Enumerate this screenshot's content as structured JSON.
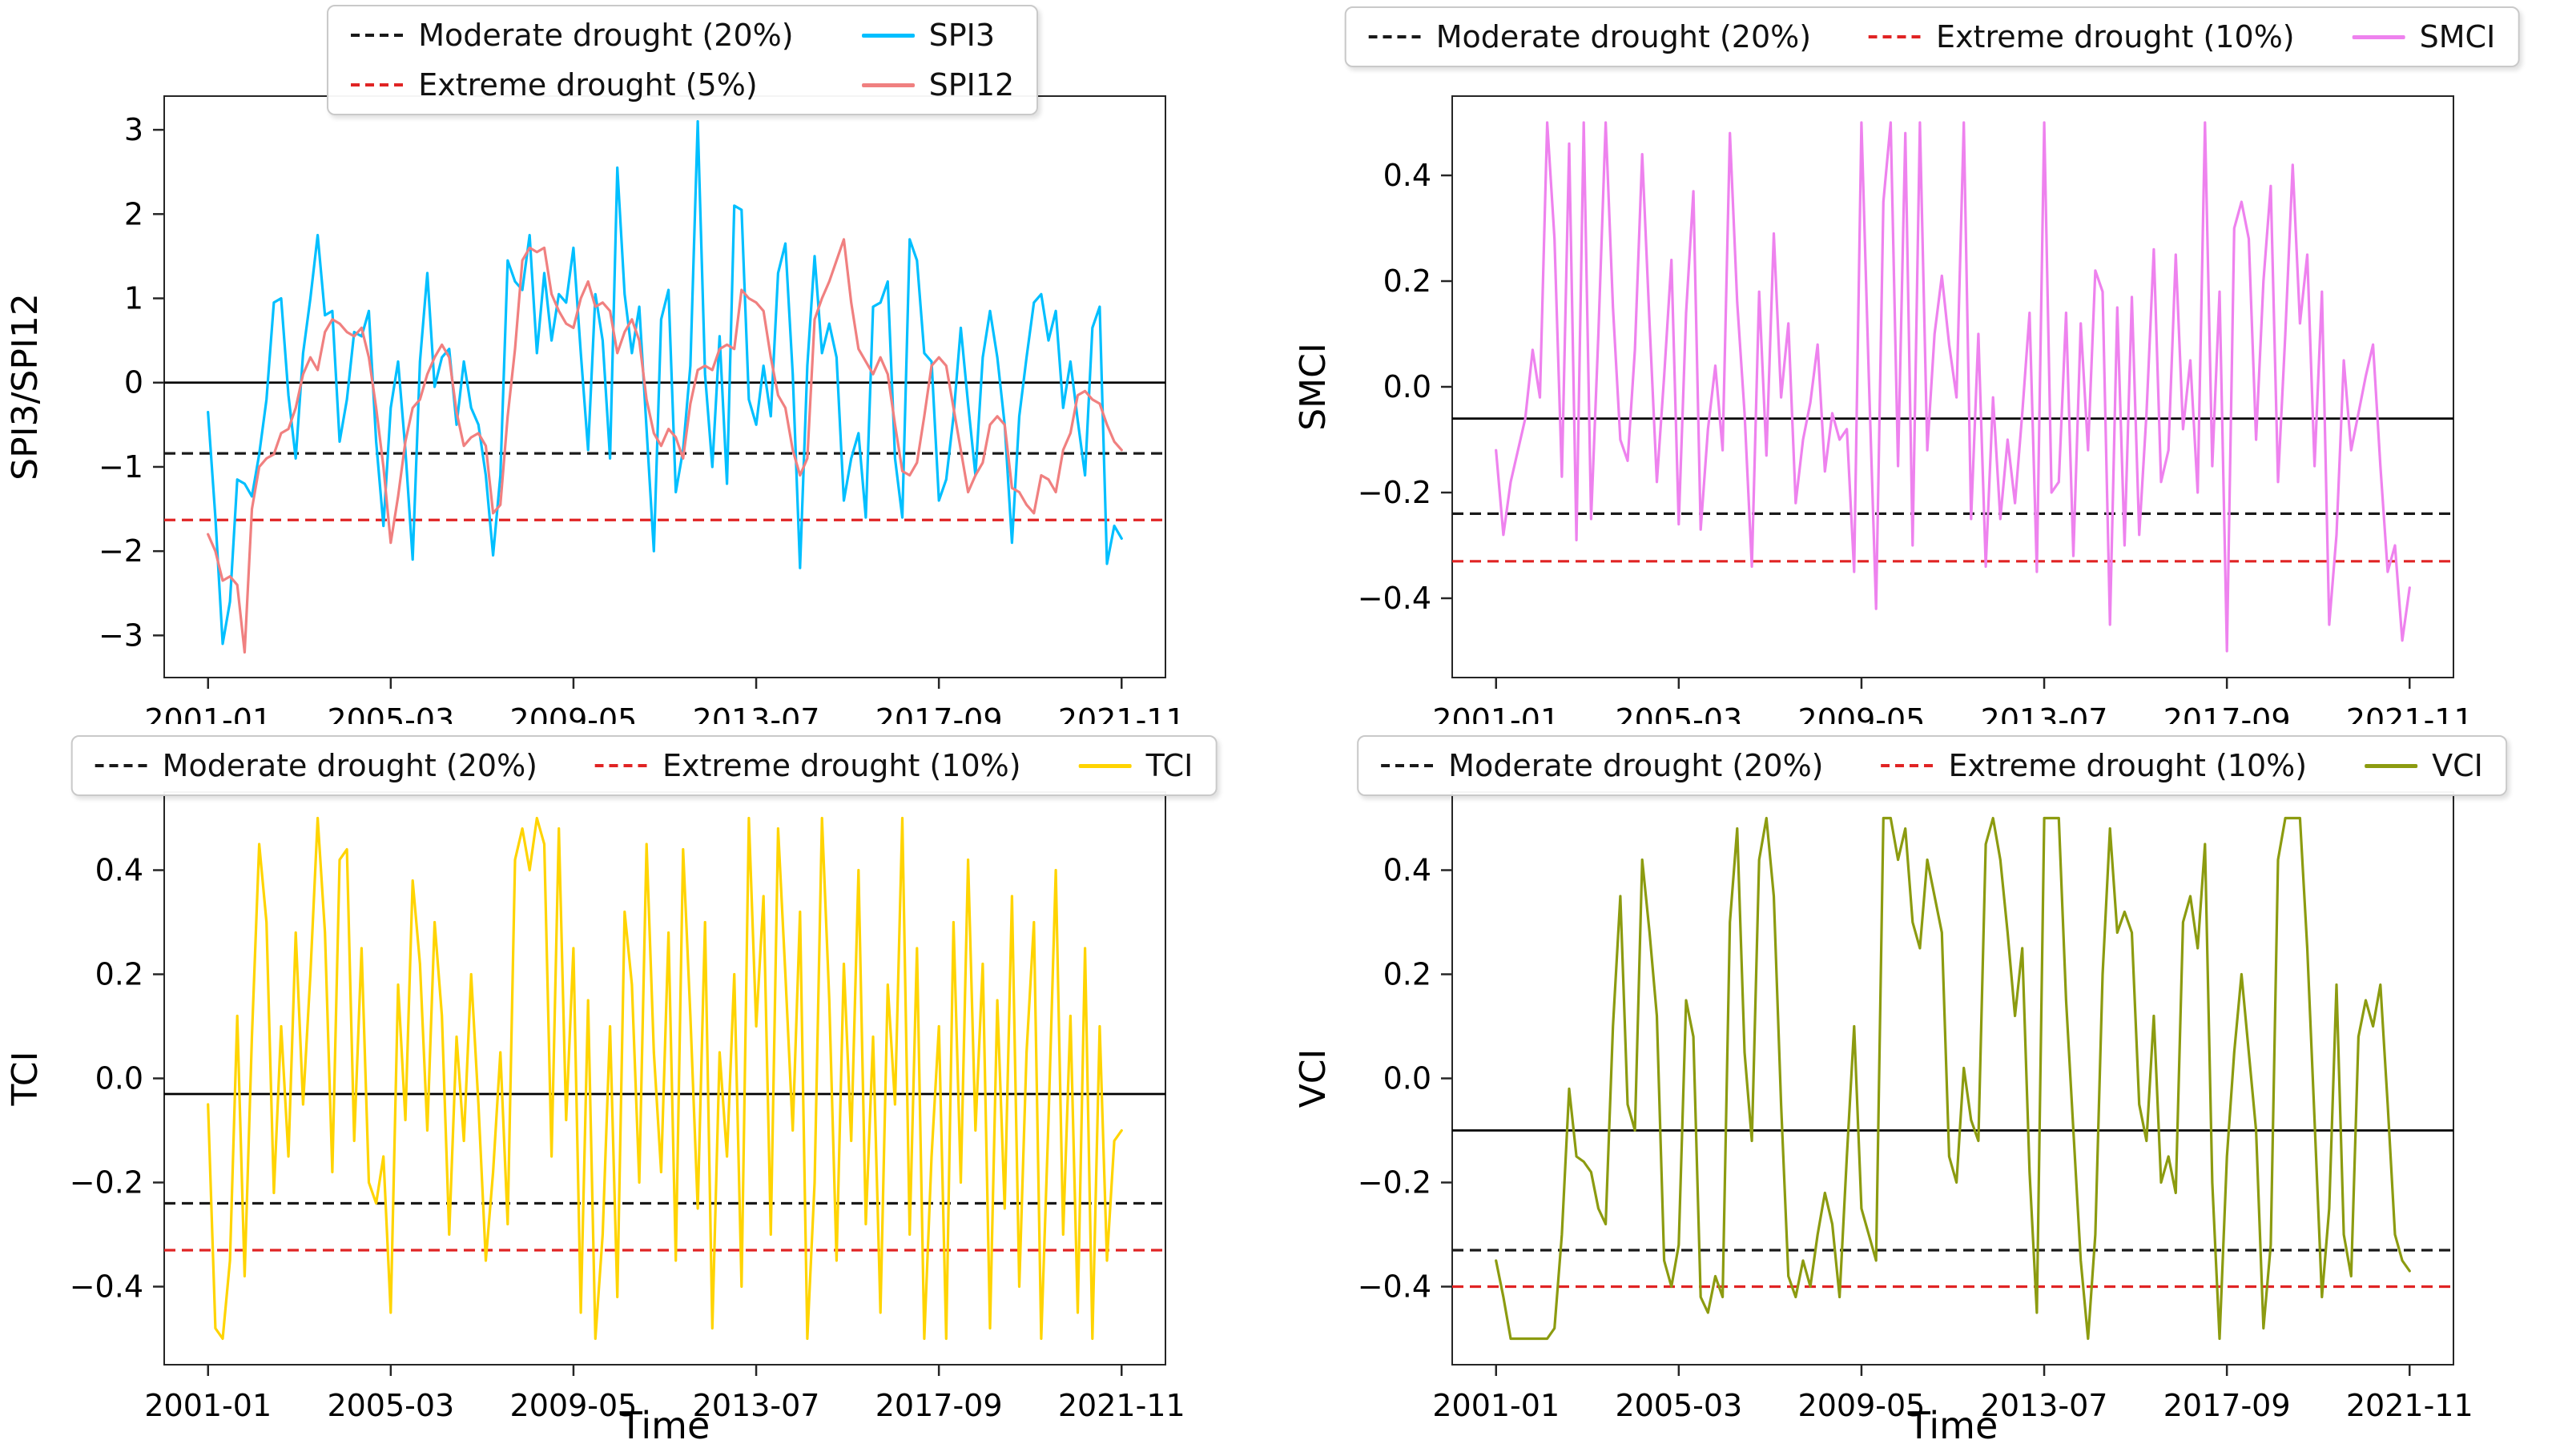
{
  "figure": {
    "background": "#ffffff",
    "x_axis_title": "Time",
    "x_tick_labels": [
      "2001-01",
      "2005-03",
      "2009-05",
      "2013-07",
      "2017-09",
      "2021-11"
    ],
    "x_tick_months": [
      0,
      50,
      100,
      150,
      200,
      250
    ]
  },
  "chart_data": [
    {
      "id": "spi",
      "type": "line",
      "ylabel": "SPI3/SPI12",
      "xlabel": "",
      "ylim": [
        -3.5,
        3.4
      ],
      "xlim": [
        -12,
        262
      ],
      "yticks": [
        {
          "v": 3,
          "label": "3"
        },
        {
          "v": 2,
          "label": "2"
        },
        {
          "v": 1,
          "label": "1"
        },
        {
          "v": 0,
          "label": "0"
        },
        {
          "v": -1,
          "label": "−1"
        },
        {
          "v": -2,
          "label": "−2"
        },
        {
          "v": -3,
          "label": "−3"
        }
      ],
      "x_tick_labels": [
        "2001-01",
        "2005-03",
        "2009-05",
        "2013-07",
        "2017-09",
        "2021-11"
      ],
      "x_tick_months": [
        0,
        50,
        100,
        150,
        200,
        250
      ],
      "x_start_month": 0,
      "x_month_step": 2,
      "reference_lines": [
        {
          "name": "zero-line",
          "value": 0,
          "color": "#000000",
          "style": "solid"
        },
        {
          "name": "moderate-drought",
          "value": -0.84,
          "color": "#1a1a1a",
          "style": "dashed"
        },
        {
          "name": "extreme-drought",
          "value": -1.63,
          "color": "#e02424",
          "style": "dashed"
        }
      ],
      "legend": {
        "columns": 2,
        "entries": [
          {
            "label": "Moderate drought (20%)",
            "style": "dashed",
            "color": "#1a1a1a"
          },
          {
            "label": "Extreme drought (5%)",
            "style": "dashed",
            "color": "#e02424"
          },
          {
            "label": "SPI3",
            "style": "solid",
            "color": "#00bfff"
          },
          {
            "label": "SPI12",
            "style": "solid",
            "color": "#f08080"
          }
        ]
      },
      "series": [
        {
          "name": "SPI3",
          "color": "#00bfff",
          "values": [
            -0.35,
            -1.6,
            -3.1,
            -2.6,
            -1.15,
            -1.2,
            -1.35,
            -0.85,
            -0.2,
            0.95,
            1.0,
            -0.15,
            -0.9,
            0.35,
            1.0,
            1.75,
            0.8,
            0.85,
            -0.7,
            -0.2,
            0.6,
            0.55,
            0.85,
            -0.7,
            -1.7,
            -0.3,
            0.25,
            -0.8,
            -2.1,
            0.25,
            1.3,
            -0.05,
            0.3,
            0.4,
            -0.5,
            0.25,
            -0.3,
            -0.5,
            -1.1,
            -2.05,
            -1.1,
            1.45,
            1.2,
            1.1,
            1.75,
            0.35,
            1.3,
            0.5,
            1.05,
            0.95,
            1.6,
            0.35,
            -0.8,
            1.05,
            0.5,
            -0.9,
            2.55,
            1.05,
            0.35,
            0.9,
            -0.55,
            -2.0,
            0.75,
            1.1,
            -1.3,
            -0.8,
            0.2,
            3.1,
            0.1,
            -1.0,
            0.55,
            -1.2,
            2.1,
            2.05,
            -0.2,
            -0.5,
            0.2,
            -0.4,
            1.3,
            1.65,
            0.1,
            -2.2,
            0.2,
            1.5,
            0.35,
            0.7,
            0.3,
            -1.4,
            -0.9,
            -0.6,
            -1.6,
            0.9,
            0.95,
            1.2,
            -0.9,
            -1.6,
            1.7,
            1.45,
            0.35,
            0.25,
            -1.4,
            -1.15,
            -0.4,
            0.65,
            -0.25,
            -1.1,
            0.3,
            0.85,
            0.3,
            -0.5,
            -1.9,
            -0.4,
            0.3,
            0.95,
            1.05,
            0.5,
            0.85,
            -0.3,
            0.25,
            -0.45,
            -1.1,
            0.65,
            0.9,
            -2.15,
            -1.7,
            -1.85
          ]
        },
        {
          "name": "SPI12",
          "color": "#f08080",
          "values": [
            -1.8,
            -2.0,
            -2.35,
            -2.3,
            -2.4,
            -3.2,
            -1.5,
            -1.0,
            -0.9,
            -0.85,
            -0.6,
            -0.55,
            -0.3,
            0.1,
            0.3,
            0.15,
            0.6,
            0.75,
            0.7,
            0.6,
            0.55,
            0.65,
            0.3,
            -0.3,
            -1.0,
            -1.9,
            -1.35,
            -0.7,
            -0.3,
            -0.2,
            0.1,
            0.3,
            0.45,
            0.3,
            -0.35,
            -0.75,
            -0.65,
            -0.6,
            -0.75,
            -1.55,
            -1.45,
            -0.4,
            0.4,
            1.45,
            1.6,
            1.55,
            1.6,
            1.05,
            0.85,
            0.7,
            0.65,
            1.0,
            1.2,
            0.9,
            0.95,
            0.85,
            0.35,
            0.6,
            0.75,
            0.5,
            -0.2,
            -0.6,
            -0.75,
            -0.55,
            -0.65,
            -0.9,
            -0.25,
            0.15,
            0.2,
            0.15,
            0.4,
            0.45,
            0.4,
            1.1,
            1.0,
            0.95,
            0.85,
            0.3,
            -0.15,
            -0.3,
            -0.8,
            -1.1,
            -0.9,
            0.75,
            1.0,
            1.2,
            1.45,
            1.7,
            0.95,
            0.4,
            0.25,
            0.1,
            0.3,
            0.1,
            -0.5,
            -1.05,
            -1.1,
            -0.95,
            -0.4,
            0.2,
            0.3,
            0.2,
            -0.3,
            -0.8,
            -1.3,
            -1.1,
            -0.95,
            -0.5,
            -0.4,
            -0.5,
            -1.25,
            -1.3,
            -1.45,
            -1.55,
            -1.1,
            -1.15,
            -1.3,
            -0.8,
            -0.6,
            -0.15,
            -0.1,
            -0.2,
            -0.25,
            -0.5,
            -0.7,
            -0.8
          ]
        }
      ]
    },
    {
      "id": "smci",
      "type": "line",
      "ylabel": "SMCI",
      "xlabel": "",
      "ylim": [
        -0.55,
        0.55
      ],
      "xlim": [
        -12,
        262
      ],
      "yticks": [
        {
          "v": 0.4,
          "label": "0.4"
        },
        {
          "v": 0.2,
          "label": "0.2"
        },
        {
          "v": 0.0,
          "label": "0.0"
        },
        {
          "v": -0.2,
          "label": "−0.2"
        },
        {
          "v": -0.4,
          "label": "−0.4"
        }
      ],
      "x_tick_labels": [
        "2001-01",
        "2005-03",
        "2009-05",
        "2013-07",
        "2017-09",
        "2021-11"
      ],
      "x_tick_months": [
        0,
        50,
        100,
        150,
        200,
        250
      ],
      "x_start_month": 0,
      "x_month_step": 2,
      "reference_lines": [
        {
          "name": "mean-line",
          "value": -0.06,
          "color": "#000000",
          "style": "solid"
        },
        {
          "name": "moderate-drought",
          "value": -0.24,
          "color": "#1a1a1a",
          "style": "dashed"
        },
        {
          "name": "extreme-drought",
          "value": -0.33,
          "color": "#e02424",
          "style": "dashed"
        }
      ],
      "legend": {
        "columns": 3,
        "entries": [
          {
            "label": "Moderate drought (20%)",
            "style": "dashed",
            "color": "#1a1a1a"
          },
          {
            "label": "Extreme drought (10%)",
            "style": "dashed",
            "color": "#e02424"
          },
          {
            "label": "SMCI",
            "style": "solid",
            "color": "#ee82ee"
          }
        ]
      },
      "series": [
        {
          "name": "SMCI",
          "color": "#ee82ee",
          "values": [
            -0.12,
            -0.28,
            -0.18,
            -0.12,
            -0.06,
            0.07,
            -0.02,
            0.5,
            0.28,
            -0.17,
            0.46,
            -0.29,
            0.5,
            -0.25,
            0.1,
            0.5,
            0.15,
            -0.1,
            -0.14,
            0.07,
            0.44,
            0.12,
            -0.18,
            0.02,
            0.24,
            -0.26,
            0.14,
            0.37,
            -0.27,
            -0.08,
            0.04,
            -0.12,
            0.48,
            0.16,
            -0.05,
            -0.34,
            0.18,
            -0.13,
            0.29,
            -0.02,
            0.12,
            -0.22,
            -0.1,
            -0.03,
            0.08,
            -0.16,
            -0.05,
            -0.1,
            -0.08,
            -0.35,
            0.5,
            0.02,
            -0.42,
            0.35,
            0.5,
            -0.15,
            0.48,
            -0.3,
            0.5,
            -0.12,
            0.1,
            0.21,
            0.08,
            -0.02,
            0.5,
            -0.25,
            0.1,
            -0.34,
            -0.02,
            -0.25,
            -0.1,
            -0.22,
            -0.05,
            0.14,
            -0.35,
            0.5,
            -0.2,
            -0.18,
            0.14,
            -0.32,
            0.12,
            -0.12,
            0.22,
            0.18,
            -0.45,
            0.15,
            -0.3,
            0.17,
            -0.28,
            -0.05,
            0.26,
            -0.18,
            -0.12,
            0.25,
            -0.08,
            0.05,
            -0.2,
            0.5,
            -0.15,
            0.18,
            -0.5,
            0.3,
            0.35,
            0.28,
            -0.1,
            0.2,
            0.38,
            -0.18,
            0.1,
            0.42,
            0.12,
            0.25,
            -0.15,
            0.18,
            -0.45,
            -0.28,
            0.05,
            -0.12,
            -0.05,
            0.02,
            0.08,
            -0.15,
            -0.35,
            -0.3,
            -0.48,
            -0.38
          ]
        }
      ]
    },
    {
      "id": "tci",
      "type": "line",
      "ylabel": "TCI",
      "xlabel": "Time",
      "ylim": [
        -0.55,
        0.55
      ],
      "xlim": [
        -12,
        262
      ],
      "yticks": [
        {
          "v": 0.4,
          "label": "0.4"
        },
        {
          "v": 0.2,
          "label": "0.2"
        },
        {
          "v": 0.0,
          "label": "0.0"
        },
        {
          "v": -0.2,
          "label": "−0.2"
        },
        {
          "v": -0.4,
          "label": "−0.4"
        }
      ],
      "x_tick_labels": [
        "2001-01",
        "2005-03",
        "2009-05",
        "2013-07",
        "2017-09",
        "2021-11"
      ],
      "x_tick_months": [
        0,
        50,
        100,
        150,
        200,
        250
      ],
      "x_start_month": 0,
      "x_month_step": 2,
      "reference_lines": [
        {
          "name": "mean-line",
          "value": -0.03,
          "color": "#000000",
          "style": "solid"
        },
        {
          "name": "moderate-drought",
          "value": -0.24,
          "color": "#1a1a1a",
          "style": "dashed"
        },
        {
          "name": "extreme-drought",
          "value": -0.33,
          "color": "#e02424",
          "style": "dashed"
        }
      ],
      "legend": {
        "columns": 3,
        "entries": [
          {
            "label": "Moderate drought (20%)",
            "style": "dashed",
            "color": "#1a1a1a"
          },
          {
            "label": "Extreme drought (10%)",
            "style": "dashed",
            "color": "#e02424"
          },
          {
            "label": "TCI",
            "style": "solid",
            "color": "#ffd400"
          }
        ]
      },
      "series": [
        {
          "name": "TCI",
          "color": "#ffd400",
          "values": [
            -0.05,
            -0.48,
            -0.5,
            -0.35,
            0.12,
            -0.38,
            0.08,
            0.45,
            0.3,
            -0.22,
            0.1,
            -0.15,
            0.28,
            -0.05,
            0.2,
            0.5,
            0.28,
            -0.18,
            0.42,
            0.44,
            -0.12,
            0.25,
            -0.2,
            -0.24,
            -0.15,
            -0.45,
            0.18,
            -0.08,
            0.38,
            0.22,
            -0.1,
            0.3,
            0.12,
            -0.3,
            0.08,
            -0.12,
            0.2,
            -0.05,
            -0.35,
            -0.18,
            0.05,
            -0.28,
            0.42,
            0.48,
            0.4,
            0.5,
            0.45,
            -0.15,
            0.48,
            -0.08,
            0.25,
            -0.45,
            0.15,
            -0.5,
            -0.3,
            0.1,
            -0.42,
            0.32,
            0.18,
            -0.2,
            0.45,
            0.05,
            -0.18,
            0.28,
            -0.35,
            0.44,
            0.12,
            -0.25,
            0.3,
            -0.48,
            0.05,
            -0.15,
            0.2,
            -0.4,
            0.5,
            0.1,
            0.35,
            -0.3,
            0.48,
            0.2,
            -0.1,
            0.32,
            -0.5,
            -0.2,
            0.5,
            0.15,
            -0.35,
            0.22,
            -0.12,
            0.4,
            -0.28,
            0.08,
            -0.45,
            0.18,
            -0.05,
            0.5,
            -0.3,
            0.25,
            -0.5,
            -0.15,
            0.1,
            -0.5,
            0.3,
            -0.2,
            0.42,
            -0.1,
            0.22,
            -0.48,
            0.15,
            -0.25,
            0.35,
            -0.4,
            0.05,
            0.3,
            -0.5,
            -0.08,
            0.4,
            -0.3,
            0.12,
            -0.45,
            0.25,
            -0.5,
            0.1,
            -0.35,
            -0.12,
            -0.1
          ]
        }
      ]
    },
    {
      "id": "vci",
      "type": "line",
      "ylabel": "VCI",
      "xlabel": "Time",
      "ylim": [
        -0.55,
        0.55
      ],
      "xlim": [
        -12,
        262
      ],
      "yticks": [
        {
          "v": 0.4,
          "label": "0.4"
        },
        {
          "v": 0.2,
          "label": "0.2"
        },
        {
          "v": 0.0,
          "label": "0.0"
        },
        {
          "v": -0.2,
          "label": "−0.2"
        },
        {
          "v": -0.4,
          "label": "−0.4"
        }
      ],
      "x_tick_labels": [
        "2001-01",
        "2005-03",
        "2009-05",
        "2013-07",
        "2017-09",
        "2021-11"
      ],
      "x_tick_months": [
        0,
        50,
        100,
        150,
        200,
        250
      ],
      "x_start_month": 0,
      "x_month_step": 2,
      "reference_lines": [
        {
          "name": "mean-line",
          "value": -0.1,
          "color": "#000000",
          "style": "solid"
        },
        {
          "name": "moderate-drought",
          "value": -0.33,
          "color": "#1a1a1a",
          "style": "dashed"
        },
        {
          "name": "extreme-drought",
          "value": -0.4,
          "color": "#e02424",
          "style": "dashed"
        }
      ],
      "legend": {
        "columns": 3,
        "entries": [
          {
            "label": "Moderate drought (20%)",
            "style": "dashed",
            "color": "#1a1a1a"
          },
          {
            "label": "Extreme drought (10%)",
            "style": "dashed",
            "color": "#e02424"
          },
          {
            "label": "VCI",
            "style": "solid",
            "color": "#8c9b10"
          }
        ]
      },
      "series": [
        {
          "name": "VCI",
          "color": "#8c9b10",
          "values": [
            -0.35,
            -0.42,
            -0.5,
            -0.5,
            -0.5,
            -0.5,
            -0.5,
            -0.5,
            -0.48,
            -0.3,
            -0.02,
            -0.15,
            -0.16,
            -0.18,
            -0.25,
            -0.28,
            0.1,
            0.35,
            -0.05,
            -0.1,
            0.42,
            0.28,
            0.12,
            -0.35,
            -0.4,
            -0.32,
            0.15,
            0.08,
            -0.42,
            -0.45,
            -0.38,
            -0.42,
            0.3,
            0.48,
            0.05,
            -0.12,
            0.42,
            0.5,
            0.35,
            -0.05,
            -0.38,
            -0.42,
            -0.35,
            -0.4,
            -0.3,
            -0.22,
            -0.28,
            -0.42,
            -0.15,
            0.1,
            -0.25,
            -0.3,
            -0.35,
            0.5,
            0.5,
            0.42,
            0.48,
            0.3,
            0.25,
            0.42,
            0.35,
            0.28,
            -0.15,
            -0.2,
            0.02,
            -0.08,
            -0.12,
            0.45,
            0.5,
            0.42,
            0.28,
            0.12,
            0.25,
            -0.18,
            -0.45,
            0.5,
            0.5,
            0.5,
            0.15,
            -0.1,
            -0.35,
            -0.5,
            -0.3,
            0.2,
            0.48,
            0.28,
            0.32,
            0.28,
            -0.05,
            -0.12,
            0.12,
            -0.2,
            -0.15,
            -0.22,
            0.3,
            0.35,
            0.25,
            0.45,
            -0.2,
            -0.5,
            -0.15,
            0.05,
            0.2,
            0.05,
            -0.1,
            -0.48,
            -0.32,
            0.42,
            0.5,
            0.5,
            0.5,
            0.25,
            -0.08,
            -0.42,
            -0.25,
            0.18,
            -0.3,
            -0.38,
            0.08,
            0.15,
            0.1,
            0.18,
            -0.05,
            -0.3,
            -0.35,
            -0.37
          ]
        }
      ]
    }
  ]
}
